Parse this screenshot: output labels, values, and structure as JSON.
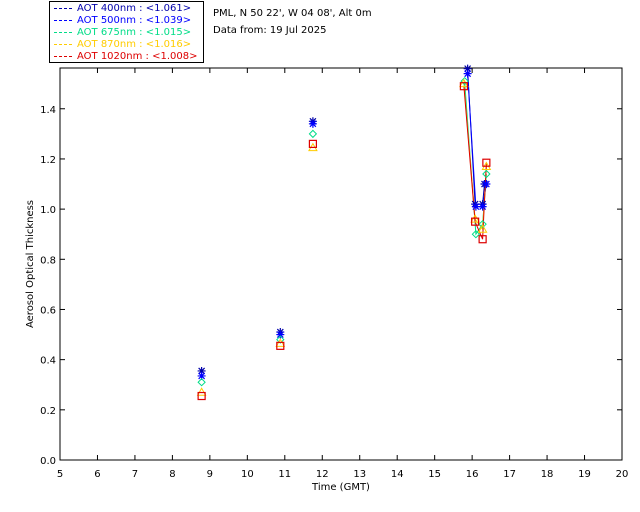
{
  "header": {
    "location": "PML, N 50 22', W 04 08', Alt 0m",
    "date_line": "Data from: 19 Jul 2025"
  },
  "legend": [
    {
      "label": "AOT  400nm : <1.061>",
      "color": "#0000aa"
    },
    {
      "label": "AOT  500nm : <1.039>",
      "color": "#0000ff"
    },
    {
      "label": "AOT  675nm : <1.015>",
      "color": "#00dd88"
    },
    {
      "label": "AOT  870nm : <1.016>",
      "color": "#ffcc00"
    },
    {
      "label": "AOT 1020nm : <1.008>",
      "color": "#dd0000"
    }
  ],
  "chart_data": {
    "type": "scatter",
    "xlabel": "Time (GMT)",
    "ylabel": "Aerosol Optical Thickness",
    "xlim": [
      5,
      20
    ],
    "ylim": [
      0.0,
      1.55
    ],
    "xticks": [
      5,
      6,
      7,
      8,
      9,
      10,
      11,
      12,
      13,
      14,
      15,
      16,
      17,
      18,
      19,
      20
    ],
    "yticks": [
      "0.0",
      "0.2",
      "0.4",
      "0.6",
      "0.8",
      "1.0",
      "1.2",
      "1.4"
    ],
    "series": [
      {
        "name": "AOT  400nm",
        "color": "#0000aa",
        "marker": "star",
        "x": [
          8.78,
          10.88,
          11.75,
          15.88,
          16.08,
          16.28,
          16.33
        ],
        "y": [
          0.355,
          0.51,
          1.35,
          1.56,
          1.02,
          1.02,
          1.1
        ]
      },
      {
        "name": "AOT  500nm",
        "color": "#0000ff",
        "marker": "star",
        "x": [
          8.78,
          10.88,
          11.75,
          15.88,
          16.1,
          16.28,
          16.38
        ],
        "y": [
          0.335,
          0.5,
          1.34,
          1.54,
          1.01,
          1.01,
          1.1
        ]
      },
      {
        "name": "AOT  675nm",
        "color": "#00dd88",
        "marker": "diamond",
        "x": [
          8.78,
          10.88,
          11.75,
          15.8,
          16.1,
          16.28,
          16.38
        ],
        "y": [
          0.31,
          0.48,
          1.3,
          1.51,
          0.9,
          0.94,
          1.14
        ]
      },
      {
        "name": "AOT  870nm",
        "color": "#ffcc00",
        "marker": "triangle",
        "x": [
          8.78,
          10.88,
          11.75,
          15.78,
          16.08,
          16.28,
          16.38
        ],
        "y": [
          0.27,
          0.465,
          1.245,
          1.5,
          0.96,
          0.92,
          1.17
        ]
      },
      {
        "name": "AOT 1020nm",
        "color": "#dd0000",
        "marker": "square",
        "x": [
          8.78,
          10.88,
          11.75,
          15.78,
          16.08,
          16.28,
          16.38
        ],
        "y": [
          0.255,
          0.455,
          1.26,
          1.49,
          0.95,
          0.88,
          1.185
        ]
      }
    ],
    "grid": false
  }
}
